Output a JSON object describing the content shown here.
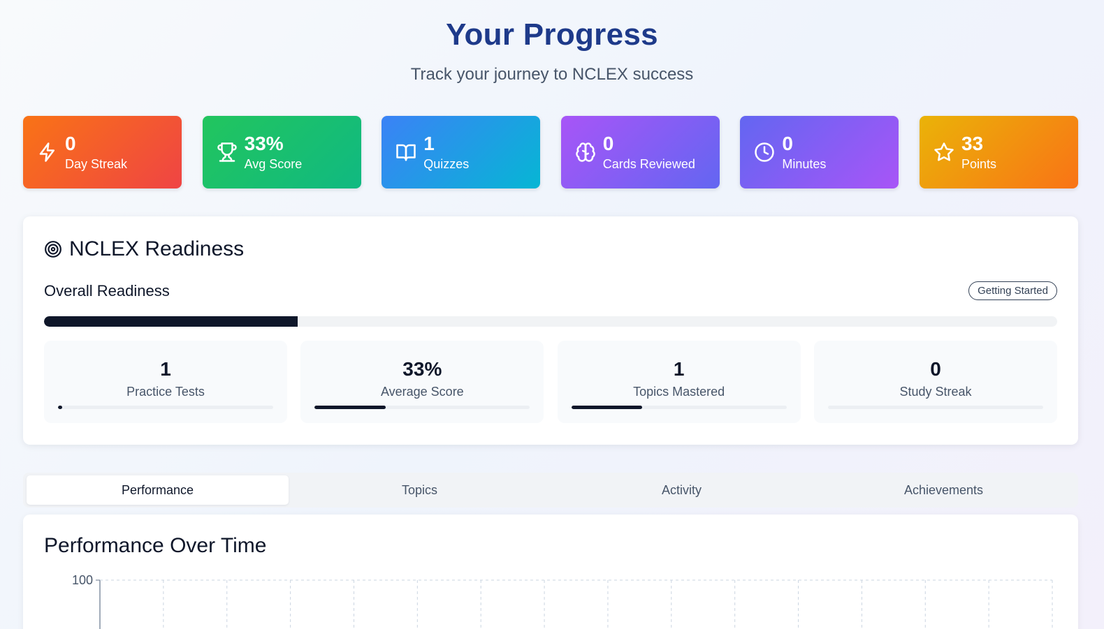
{
  "header": {
    "title": "Your Progress",
    "subtitle": "Track your journey to NCLEX success"
  },
  "stats": [
    {
      "value": "0",
      "label": "Day Streak",
      "icon": "lightning-icon",
      "color_from": "#f97316",
      "color_to": "#ef4444"
    },
    {
      "value": "33%",
      "label": "Avg Score",
      "icon": "trophy-icon",
      "color_from": "#22c55e",
      "color_to": "#10b981"
    },
    {
      "value": "1",
      "label": "Quizzes",
      "icon": "book-icon",
      "color_from": "#3b82f6",
      "color_to": "#06b6d4"
    },
    {
      "value": "0",
      "label": "Cards Reviewed",
      "icon": "brain-icon",
      "color_from": "#a855f7",
      "color_to": "#6366f1"
    },
    {
      "value": "0",
      "label": "Minutes",
      "icon": "clock-icon",
      "color_from": "#6366f1",
      "color_to": "#a855f7"
    },
    {
      "value": "33",
      "label": "Points",
      "icon": "star-icon",
      "color_from": "#eab308",
      "color_to": "#f97316"
    }
  ],
  "readiness": {
    "title": "NCLEX Readiness",
    "icon": "target-icon",
    "overall_label": "Overall Readiness",
    "badge": "Getting Started",
    "overall_fraction": 0.25,
    "metrics": [
      {
        "value": "1",
        "label": "Practice Tests",
        "fraction": 0.02
      },
      {
        "value": "33%",
        "label": "Average Score",
        "fraction": 0.33
      },
      {
        "value": "1",
        "label": "Topics Mastered",
        "fraction": 0.33
      },
      {
        "value": "0",
        "label": "Study Streak",
        "fraction": 0.0
      }
    ]
  },
  "tabs": [
    {
      "label": "Performance",
      "active": true
    },
    {
      "label": "Topics",
      "active": false
    },
    {
      "label": "Activity",
      "active": false
    },
    {
      "label": "Achievements",
      "active": false
    }
  ],
  "performance": {
    "title": "Performance Over Time"
  },
  "chart_data": {
    "type": "line",
    "title": "Performance Over Time",
    "xlabel": "",
    "ylabel": "",
    "y_ticks_visible": [
      100
    ],
    "grid": true,
    "series": []
  },
  "colors": {
    "title": "#1e3a8a",
    "progress_fill": "#0f172a",
    "progress_track": "#f1f3f5"
  }
}
